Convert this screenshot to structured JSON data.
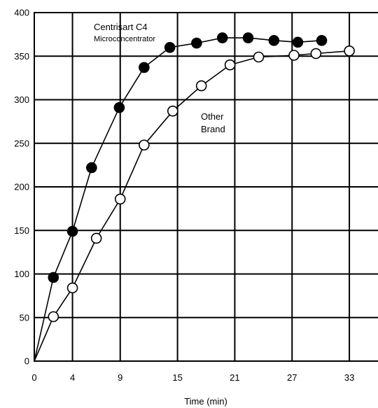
{
  "chart_data": {
    "type": "line",
    "title": "",
    "xlabel": "Time (min)",
    "ylabel": "",
    "x_ticks": [
      "0",
      "4",
      "9",
      "15",
      "21",
      "27",
      "33"
    ],
    "y_ticks": [
      "0",
      "50",
      "100",
      "150",
      "200",
      "250",
      "300",
      "350",
      "400"
    ],
    "xlim": [
      0,
      36
    ],
    "ylim": [
      0,
      400
    ],
    "grid": true,
    "series": [
      {
        "marker": "filled-circle",
        "points": [
          [
            0,
            0
          ],
          [
            2,
            96
          ],
          [
            4,
            149
          ],
          [
            6,
            222
          ],
          [
            8.9,
            291
          ],
          [
            11.5,
            337
          ],
          [
            14.2,
            360
          ],
          [
            17,
            365
          ],
          [
            19.7,
            371
          ],
          [
            22.4,
            371
          ],
          [
            25.1,
            368
          ],
          [
            27.6,
            366
          ],
          [
            30.1,
            368
          ]
        ]
      },
      {
        "marker": "open-circle",
        "points": [
          [
            0,
            0
          ],
          [
            2,
            51
          ],
          [
            4,
            84
          ],
          [
            6.5,
            141
          ],
          [
            9,
            186
          ],
          [
            11.5,
            248
          ],
          [
            14.5,
            287
          ],
          [
            17.5,
            316
          ],
          [
            20.5,
            340
          ],
          [
            23.5,
            349
          ],
          [
            27.2,
            351
          ],
          [
            29.5,
            353
          ],
          [
            33,
            356
          ]
        ]
      }
    ],
    "annotations": [
      {
        "id": "centrisart-line1",
        "text": "Centrisart C4"
      },
      {
        "id": "centrisart-line2",
        "text": "Microconcentrator"
      },
      {
        "id": "other-line1",
        "text": "Other"
      },
      {
        "id": "other-line2",
        "text": "Brand"
      }
    ]
  }
}
